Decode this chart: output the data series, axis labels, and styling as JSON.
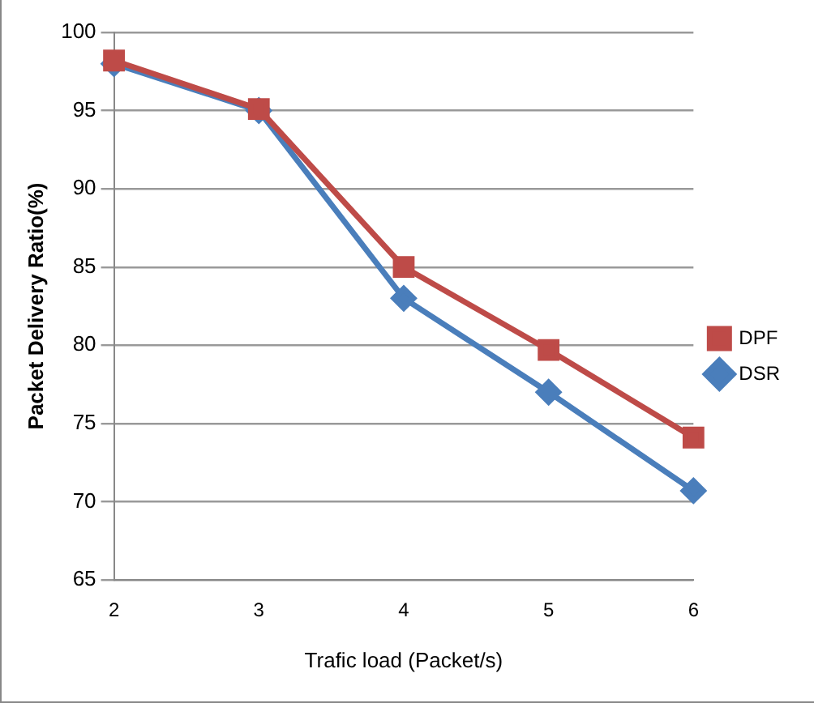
{
  "chart_data": {
    "type": "line",
    "xlabel": "Trafic load (Packet/s)",
    "ylabel": "Packet Delivery Ratio(%)",
    "categories": [
      "2",
      "3",
      "4",
      "5",
      "6"
    ],
    "series": [
      {
        "name": "DSR",
        "color": "#4a7ebb",
        "marker": "diamond",
        "values": [
          98,
          95,
          83,
          77,
          70.7
        ]
      },
      {
        "name": "DPF",
        "color": "#be4b48",
        "marker": "square",
        "values": [
          98.2,
          95.1,
          85,
          79.7,
          74.1
        ]
      }
    ],
    "ylim": [
      65,
      100
    ],
    "yticks": [
      65,
      70,
      75,
      80,
      85,
      90,
      95,
      100
    ],
    "grid": "y",
    "legend": "right",
    "line_style": "solid"
  }
}
